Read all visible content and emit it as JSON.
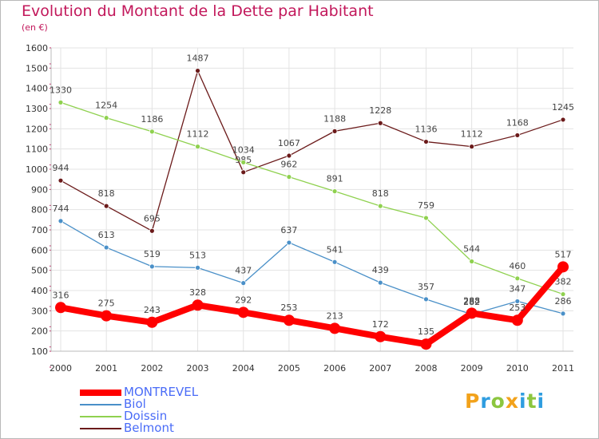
{
  "header": {
    "title": "Evolution du Montant de la Dette par Habitant",
    "unit": "(en €)"
  },
  "logo": {
    "text": "Proxiti"
  },
  "chart_data": {
    "type": "line",
    "title": "Evolution du Montant de la Dette par Habitant",
    "subtitle": "(en €)",
    "xlabel": "",
    "ylabel": "",
    "x": [
      "2000",
      "2001",
      "2002",
      "2003",
      "2004",
      "2005",
      "2006",
      "2007",
      "2008",
      "2009",
      "2010",
      "2011"
    ],
    "ylim": [
      100,
      1600
    ],
    "yticks": [
      100,
      200,
      300,
      400,
      500,
      600,
      700,
      800,
      900,
      1000,
      1100,
      1200,
      1300,
      1400,
      1500,
      1600
    ],
    "grid": true,
    "legend_position": "bottom-left",
    "series": [
      {
        "name": "MONTREVEL",
        "color": "#ff0000",
        "values": [
          316,
          275,
          243,
          328,
          292,
          253,
          213,
          172,
          135,
          288,
          253,
          517
        ]
      },
      {
        "name": "Biol",
        "color": "#4a90c8",
        "values": [
          744,
          613,
          519,
          513,
          437,
          637,
          541,
          439,
          357,
          282,
          347,
          286
        ]
      },
      {
        "name": "Doissin",
        "color": "#8fd14f",
        "values": [
          1330,
          1254,
          1186,
          1112,
          1034,
          962,
          891,
          818,
          759,
          544,
          460,
          382
        ]
      },
      {
        "name": "Belmont",
        "color": "#6b1a1a",
        "values": [
          944,
          818,
          695,
          1487,
          985,
          1067,
          1188,
          1228,
          1136,
          1112,
          1168,
          1245
        ]
      }
    ]
  }
}
